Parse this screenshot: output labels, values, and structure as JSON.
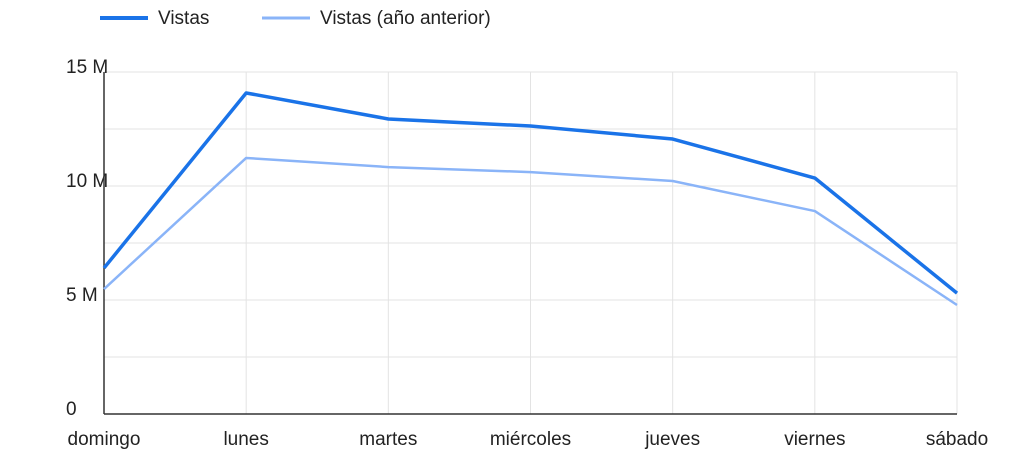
{
  "chart_data": {
    "type": "line",
    "categories": [
      "domingo",
      "lunes",
      "martes",
      "miércoles",
      "jueves",
      "viernes",
      "sábado"
    ],
    "series": [
      {
        "name": "Vistas",
        "color": "#1a73e8",
        "values": [
          6400000,
          14080000,
          12940000,
          12630000,
          12060000,
          10350000,
          5300000
        ]
      },
      {
        "name": "Vistas (año anterior)",
        "color": "#8ab4f8",
        "values": [
          5480000,
          11230000,
          10830000,
          10610000,
          10220000,
          8900000,
          4780000
        ]
      }
    ],
    "ylim": [
      0,
      15000000
    ],
    "yticks": [
      0,
      {
        "value": 5000000,
        "label": "5 M"
      },
      {
        "value": 10000000,
        "label": "10 M"
      },
      {
        "value": 15000000,
        "label": "15 M"
      }
    ],
    "minor_yticks": [
      2500000,
      7500000,
      12500000
    ],
    "grid": true,
    "legend": "top"
  }
}
